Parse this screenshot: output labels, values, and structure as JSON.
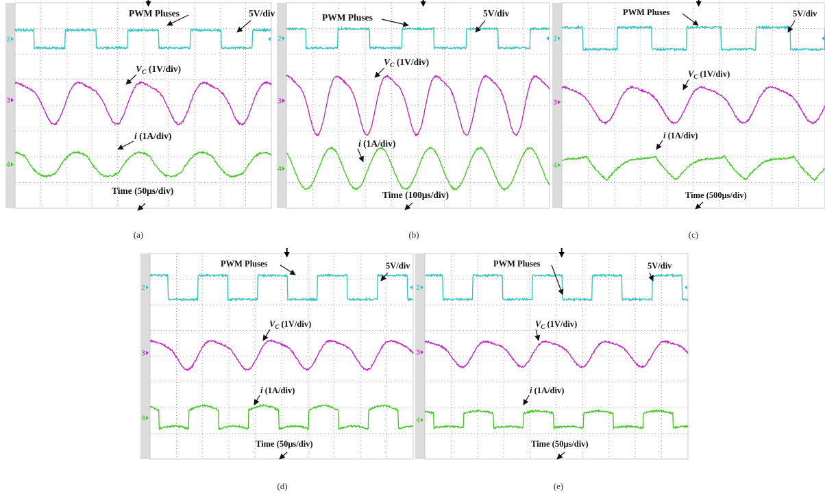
{
  "colors": {
    "ch2": "#2cc2c2",
    "ch3": "#c21cc4",
    "ch4": "#3cc61c",
    "grid": "#9a9a9a",
    "bezel": "#dcdcdc"
  },
  "channels": {
    "ch2": "2",
    "ch3": "3",
    "ch4": "4"
  },
  "chart_data": [
    {
      "id": "a",
      "type": "line",
      "caption": "(a)",
      "pwm_label": "PWM Pluses",
      "pwm_scale": "5V/div",
      "vc_var": "V",
      "vc_sub": "C",
      "vc_scale": " (1V/div)",
      "i_var": "i",
      "i_scale": " (1A/div)",
      "time_label": "Time (50μs/div)",
      "pwm_periods_per_screen": 4.1,
      "vc_periods_per_screen": 4.1,
      "i_periods_per_screen": 4.1,
      "i_shape": "triangular"
    },
    {
      "id": "b",
      "type": "line",
      "caption": "(b)",
      "pwm_label": "PWM Pluses",
      "pwm_scale": "5V/div",
      "vc_var": "V",
      "vc_sub": "C",
      "vc_scale": " (1V/div)",
      "i_var": "i",
      "i_scale": " (1A/div)",
      "time_label": "Time (100μs/div)",
      "pwm_periods_per_screen": 4.1,
      "vc_periods_per_screen": 5.3,
      "i_periods_per_screen": 5.3,
      "i_shape": "sinusoidal"
    },
    {
      "id": "c",
      "type": "line",
      "caption": "(c)",
      "pwm_label": "PWM Pluses",
      "pwm_scale": "5V/div",
      "vc_var": "V",
      "vc_sub": "C",
      "vc_scale": " (1V/div)",
      "i_var": "i",
      "i_scale": " (1A/div)",
      "time_label": "Time (500μs/div)",
      "pwm_periods_per_screen": 3.8,
      "vc_periods_per_screen": 3.8,
      "i_periods_per_screen": 3.8,
      "i_shape": "sawtooth"
    },
    {
      "id": "d",
      "type": "line",
      "caption": "(d)",
      "pwm_label": "PWM Pluses",
      "pwm_scale": "5V/div",
      "vc_var": "V",
      "vc_sub": "C",
      "vc_scale": " (1V/div)",
      "i_var": "i",
      "i_scale": " (1A/div)",
      "time_label": "Time (50μs/div)",
      "pwm_periods_per_screen": 4.4,
      "vc_periods_per_screen": 4.4,
      "i_periods_per_screen": 4.4,
      "i_shape": "stepped"
    },
    {
      "id": "e",
      "type": "line",
      "caption": "(e)",
      "pwm_label": "PWM Pluses",
      "pwm_scale": "5V/div",
      "vc_var": "V",
      "vc_sub": "C",
      "vc_scale": " (1V/div)",
      "i_var": "i",
      "i_scale": " (1A/div)",
      "time_label": "Time (50μs/div)",
      "pwm_periods_per_screen": 4.4,
      "vc_periods_per_screen": 4.4,
      "i_periods_per_screen": 4.4,
      "i_shape": "flat-stepped"
    }
  ]
}
